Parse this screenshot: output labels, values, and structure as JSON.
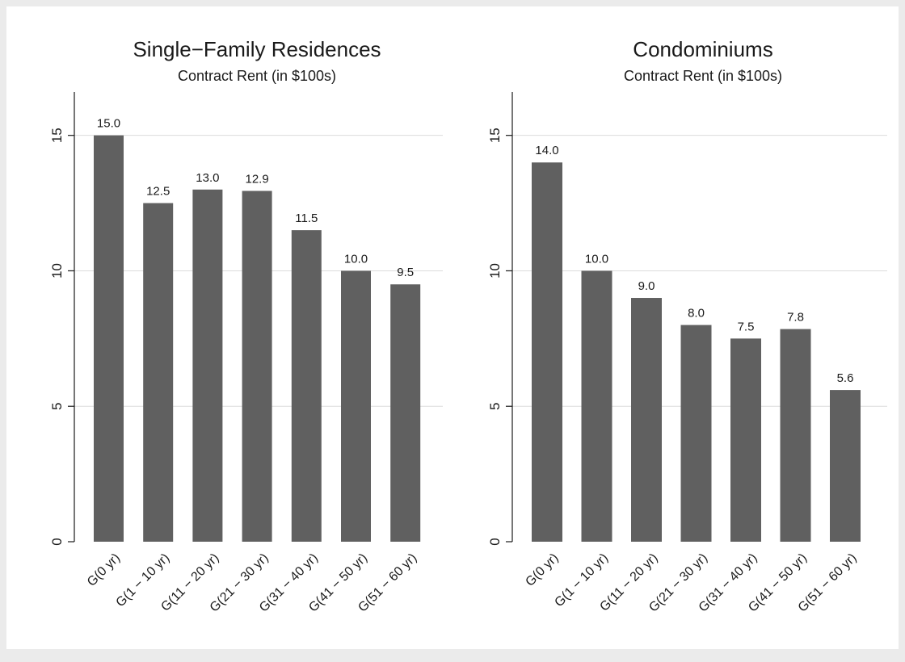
{
  "chart_data": [
    {
      "type": "bar",
      "title": "Single−Family Residences",
      "subtitle": "Contract Rent (in $100s)",
      "categories": [
        "G(0 yr)",
        "G(1 − 10 yr)",
        "G(11 − 20 yr)",
        "G(21 − 30 yr)",
        "G(31 − 40 yr)",
        "G(41 − 50 yr)",
        "G(51 − 60 yr)"
      ],
      "values": [
        15.0,
        12.5,
        13.0,
        12.95,
        11.5,
        10.0,
        9.5
      ],
      "value_labels": [
        "15.0",
        "12.5",
        "13.0",
        "12.9",
        "11.5",
        "10.0",
        "9.5"
      ],
      "yticks": [
        "0",
        "5",
        "10",
        "15"
      ],
      "ylim": [
        0,
        16.6
      ],
      "grid": true,
      "bar_color": "#606060"
    },
    {
      "type": "bar",
      "title": "Condominiums",
      "subtitle": "Contract Rent (in $100s)",
      "categories": [
        "G(0 yr)",
        "G(1 − 10 yr)",
        "G(11 − 20 yr)",
        "G(21 − 30 yr)",
        "G(31 − 40 yr)",
        "G(41 − 50 yr)",
        "G(51 − 60 yr)"
      ],
      "values": [
        14.0,
        10.0,
        9.0,
        8.0,
        7.5,
        7.85,
        5.6
      ],
      "value_labels": [
        "14.0",
        "10.0",
        "9.0",
        "8.0",
        "7.5",
        "7.8",
        "5.6"
      ],
      "yticks": [
        "0",
        "5",
        "10",
        "15"
      ],
      "ylim": [
        0,
        16.6
      ],
      "grid": true,
      "bar_color": "#606060"
    }
  ]
}
